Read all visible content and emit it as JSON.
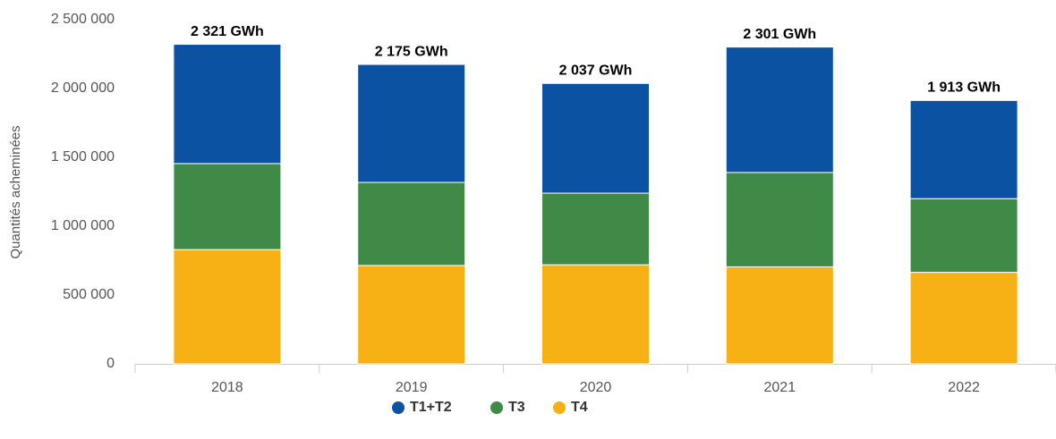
{
  "chart_data": {
    "type": "stacked_bar",
    "y_label": "Quantités acheminées",
    "categories": [
      "2018",
      "2019",
      "2020",
      "2021",
      "2022"
    ],
    "series": [
      {
        "name": "T1+T2",
        "color": "#0b52a3",
        "values": [
          866000,
          857000,
          797000,
          911000,
          713000
        ]
      },
      {
        "name": "T3",
        "color": "#3e8a46",
        "values": [
          625000,
          603000,
          520000,
          685000,
          535000
        ]
      },
      {
        "name": "T4",
        "color": "#f7b115",
        "values": [
          830000,
          715000,
          720000,
          705000,
          665000
        ]
      }
    ],
    "totals": [
      2321000,
      2175000,
      2037000,
      2301000,
      1913000
    ],
    "total_labels": [
      "2 321 GWh",
      "2 175 GWh",
      "2 037 GWh",
      "2 301 GWh",
      "1 913 GWh"
    ],
    "ylim": [
      0,
      2500000
    ],
    "yticks": [
      0,
      {
        "value": 500000,
        "label": "500 000"
      },
      {
        "value": 1000000,
        "label": "1 000 000"
      },
      {
        "value": 1500000,
        "label": "1 500 000"
      },
      {
        "value": 2000000,
        "label": "2 000 000"
      },
      {
        "value": 2500000,
        "label": "2 500 000"
      }
    ],
    "grid": false,
    "legend": "bottom"
  }
}
